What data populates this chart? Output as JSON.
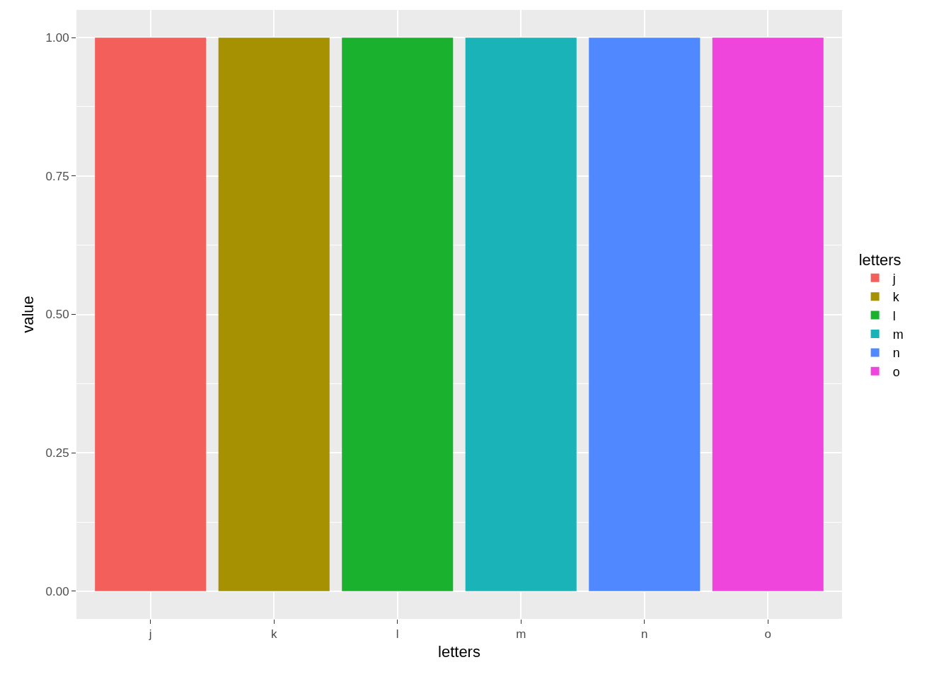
{
  "chart_data": {
    "type": "bar",
    "xlabel": "letters",
    "ylabel": "value",
    "legend_title": "letters",
    "categories": [
      "j",
      "k",
      "l",
      "m",
      "n",
      "o"
    ],
    "series": [
      {
        "name": "j",
        "color": "#f35f5a",
        "values": [
          1,
          null,
          null,
          null,
          null,
          null
        ]
      },
      {
        "name": "k",
        "color": "#a69102",
        "values": [
          null,
          1,
          null,
          null,
          null,
          null
        ]
      },
      {
        "name": "l",
        "color": "#19b12e",
        "values": [
          null,
          null,
          1,
          null,
          null,
          null
        ]
      },
      {
        "name": "m",
        "color": "#1ab3b7",
        "values": [
          null,
          null,
          null,
          1,
          null,
          null
        ]
      },
      {
        "name": "n",
        "color": "#5088ff",
        "values": [
          null,
          null,
          null,
          null,
          1,
          null
        ]
      },
      {
        "name": "o",
        "color": "#f045dc",
        "values": [
          null,
          null,
          null,
          null,
          null,
          1
        ]
      }
    ],
    "ylim": [
      -0.05,
      1.05
    ],
    "yticks": [
      {
        "value": 0,
        "label": "0.00"
      },
      {
        "value": 0.25,
        "label": "0.25"
      },
      {
        "value": 0.5,
        "label": "0.50"
      },
      {
        "value": 0.75,
        "label": "0.75"
      },
      {
        "value": 1,
        "label": "1.00"
      }
    ],
    "grid": true,
    "legend": "right"
  }
}
